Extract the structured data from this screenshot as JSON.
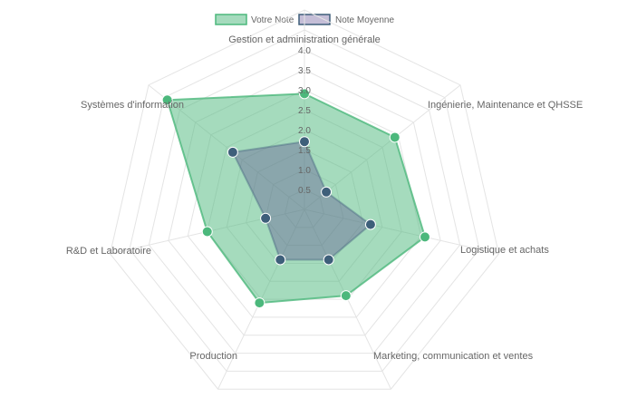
{
  "chart_data": {
    "type": "radar",
    "categories": [
      "Gestion et administration générale",
      "Ingénierie, Maintenance et QHSSE",
      "Logistique et achats",
      "Marketing, communication et ventes",
      "Production",
      "R&D et Laboratoire",
      "Systèmes d'information"
    ],
    "series": [
      {
        "name": "Votre Note",
        "values": [
          2.9,
          2.9,
          3.1,
          2.4,
          2.6,
          2.5,
          4.4
        ],
        "color": "#4cb87c",
        "fill": "rgba(76,184,124,0.5)"
      },
      {
        "name": "Note Moyenne",
        "values": [
          1.7,
          0.7,
          1.7,
          1.4,
          1.4,
          1.0,
          2.3
        ],
        "color": "#3e5f7a",
        "fill": "rgba(90,70,140,0.35)"
      }
    ],
    "r_ticks": [
      "0.5",
      "1.0",
      "1.5",
      "2.0",
      "2.5",
      "3.0",
      "3.5",
      "4.0"
    ],
    "r_max": 5,
    "grid": true,
    "legend_position": "top"
  }
}
